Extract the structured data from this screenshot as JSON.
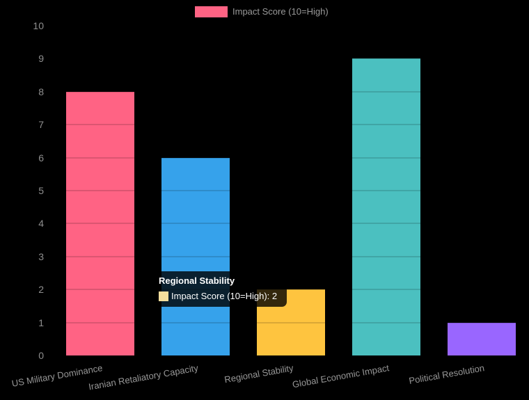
{
  "legend": {
    "label": "Impact Score (10=High)",
    "swatch_color": "#FF6384"
  },
  "tooltip": {
    "title": "Regional Stability",
    "body": "Impact Score (10=High): 2",
    "swatch_color": "#F5DF9E"
  },
  "chart_data": {
    "type": "bar",
    "title": "",
    "xlabel": "",
    "ylabel": "",
    "categories": [
      "US Military Dominance",
      "Iranian Retaliatory Capacity",
      "Regional Stability",
      "Global Economic Impact",
      "Political Resolution"
    ],
    "series": [
      {
        "name": "Impact Score (10=High)",
        "values": [
          8,
          6,
          2,
          9,
          1
        ],
        "colors": [
          "#FF6384",
          "#36A2EB",
          "#FEC43F",
          "#4BC0C0",
          "#9966FF"
        ]
      }
    ],
    "ylim": [
      0,
      10
    ],
    "yticks": [
      0,
      1,
      2,
      3,
      4,
      5,
      6,
      7,
      8,
      9,
      10
    ],
    "legend_position": "top",
    "grid": true,
    "background_color": "#000000",
    "highlighted_category": "Regional Stability",
    "highlighted_value": 2
  }
}
